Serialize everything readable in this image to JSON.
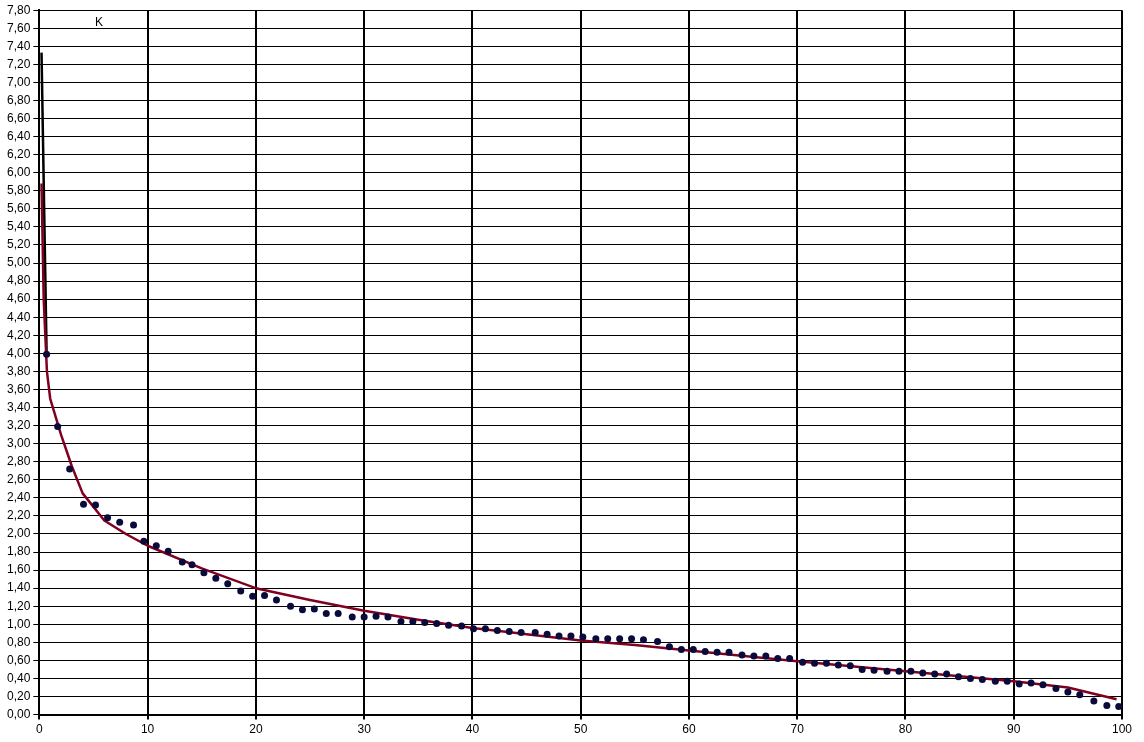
{
  "chart_data": {
    "type": "scatter",
    "ylabel": "K",
    "xlim": [
      0,
      100
    ],
    "ylim": [
      0,
      7.8
    ],
    "xticks": [
      0,
      10,
      20,
      30,
      40,
      50,
      60,
      70,
      80,
      90,
      100
    ],
    "yticks": [
      {
        "value": 0,
        "label": "0,00"
      },
      {
        "value": 0.2,
        "label": "0,20"
      },
      {
        "value": 0.4,
        "label": "0,40"
      },
      {
        "value": 0.6,
        "label": "0,60"
      },
      {
        "value": 0.8,
        "label": "0,80"
      },
      {
        "value": 1,
        "label": "1,00"
      },
      {
        "value": 1.2,
        "label": "1,20"
      },
      {
        "value": 1.4,
        "label": "1,40"
      },
      {
        "value": 1.6,
        "label": "1,60"
      },
      {
        "value": 1.8,
        "label": "1,80"
      },
      {
        "value": 2,
        "label": "2,00"
      },
      {
        "value": 2.2,
        "label": "2,20"
      },
      {
        "value": 2.4,
        "label": "2,40"
      },
      {
        "value": 2.6,
        "label": "2,60"
      },
      {
        "value": 2.8,
        "label": "2,80"
      },
      {
        "value": 3,
        "label": "3,00"
      },
      {
        "value": 3.2,
        "label": "3,20"
      },
      {
        "value": 3.4,
        "label": "3,40"
      },
      {
        "value": 3.6,
        "label": "3,60"
      },
      {
        "value": 3.8,
        "label": "3,80"
      },
      {
        "value": 4,
        "label": "4,00"
      },
      {
        "value": 4.2,
        "label": "4,20"
      },
      {
        "value": 4.4,
        "label": "4,40"
      },
      {
        "value": 4.6,
        "label": "4,60"
      },
      {
        "value": 4.8,
        "label": "4,80"
      },
      {
        "value": 5,
        "label": "5,00"
      },
      {
        "value": 5.2,
        "label": "5,20"
      },
      {
        "value": 5.4,
        "label": "5,40"
      },
      {
        "value": 5.6,
        "label": "5,60"
      },
      {
        "value": 5.8,
        "label": "5,80"
      },
      {
        "value": 6,
        "label": "6,00"
      },
      {
        "value": 6.2,
        "label": "6,20"
      },
      {
        "value": 6.4,
        "label": "6,40"
      },
      {
        "value": 6.6,
        "label": "6,60"
      },
      {
        "value": 6.8,
        "label": "6,80"
      },
      {
        "value": 7,
        "label": "7,00"
      },
      {
        "value": 7.2,
        "label": "7,20"
      },
      {
        "value": 7.4,
        "label": "7,40"
      },
      {
        "value": 7.6,
        "label": "7,60"
      },
      {
        "value": 7.8,
        "label": "7,80"
      }
    ],
    "grid": true,
    "legend": false,
    "series": [
      {
        "type": "line",
        "color": "#000000",
        "marker": "none",
        "x": [
          0.2,
          0.67
        ],
        "values": [
          7.33,
          3.99
        ]
      },
      {
        "type": "line",
        "color": "#800020",
        "marker": "none",
        "x": [
          0.2,
          0.4,
          0.7,
          1,
          2,
          3,
          4,
          5,
          6,
          8,
          10,
          15,
          20,
          25,
          30,
          35,
          40,
          45,
          50,
          55,
          60,
          70,
          80,
          90,
          95,
          99.5
        ],
        "values": [
          5.88,
          4.6,
          3.8,
          3.5,
          3.1,
          2.75,
          2.45,
          2.3,
          2.15,
          2,
          1.87,
          1.62,
          1.4,
          1.27,
          1.15,
          1.05,
          0.96,
          0.89,
          0.82,
          0.77,
          0.71,
          0.59,
          0.48,
          0.37,
          0.3,
          0.17
        ]
      },
      {
        "type": "scatter",
        "color": "#0b0b3b",
        "marker": "circle",
        "x": [
          0.67,
          1.69,
          2.8,
          4.08,
          5.19,
          6.3,
          7.42,
          8.7,
          9.65,
          10.8,
          11.9,
          13.2,
          14.1,
          15.2,
          16.3,
          17.4,
          18.6,
          19.7,
          20.8,
          21.9,
          23.2,
          24.3,
          25.4,
          26.5,
          27.6,
          28.9,
          30,
          31.1,
          32.2,
          33.4,
          34.5,
          35.6,
          36.7,
          37.8,
          39,
          40.1,
          41.2,
          42.3,
          43.4,
          44.5,
          45.8,
          46.9,
          48,
          49.1,
          50.2,
          51.4,
          52.5,
          53.6,
          54.7,
          55.8,
          57.1,
          58.2,
          59.3,
          60.4,
          61.5,
          62.6,
          63.7,
          64.9,
          66,
          67.1,
          68.2,
          69.3,
          70.5,
          71.6,
          72.7,
          73.8,
          74.9,
          76,
          77.1,
          78.3,
          79.4,
          80.5,
          81.6,
          82.7,
          83.8,
          84.9,
          86,
          87.1,
          88.3,
          89.4,
          90.5,
          91.6,
          92.7,
          93.9,
          95,
          96.1,
          97.4,
          98.6,
          99.7
        ],
        "values": [
          3.99,
          3.19,
          2.72,
          2.33,
          2.32,
          2.18,
          2.13,
          2.1,
          1.92,
          1.87,
          1.81,
          1.69,
          1.66,
          1.57,
          1.51,
          1.45,
          1.37,
          1.31,
          1.32,
          1.27,
          1.2,
          1.16,
          1.17,
          1.12,
          1.12,
          1.08,
          1.08,
          1.09,
          1.08,
          1.03,
          1.03,
          1.02,
          1.01,
          0.99,
          0.98,
          0.95,
          0.95,
          0.93,
          0.92,
          0.91,
          0.91,
          0.89,
          0.87,
          0.87,
          0.86,
          0.84,
          0.84,
          0.84,
          0.84,
          0.83,
          0.81,
          0.75,
          0.72,
          0.72,
          0.7,
          0.69,
          0.69,
          0.66,
          0.65,
          0.65,
          0.62,
          0.62,
          0.58,
          0.57,
          0.57,
          0.55,
          0.54,
          0.5,
          0.49,
          0.48,
          0.48,
          0.48,
          0.46,
          0.45,
          0.45,
          0.42,
          0.4,
          0.39,
          0.37,
          0.37,
          0.34,
          0.35,
          0.33,
          0.29,
          0.25,
          0.22,
          0.15,
          0.1,
          0.09
        ]
      }
    ]
  }
}
